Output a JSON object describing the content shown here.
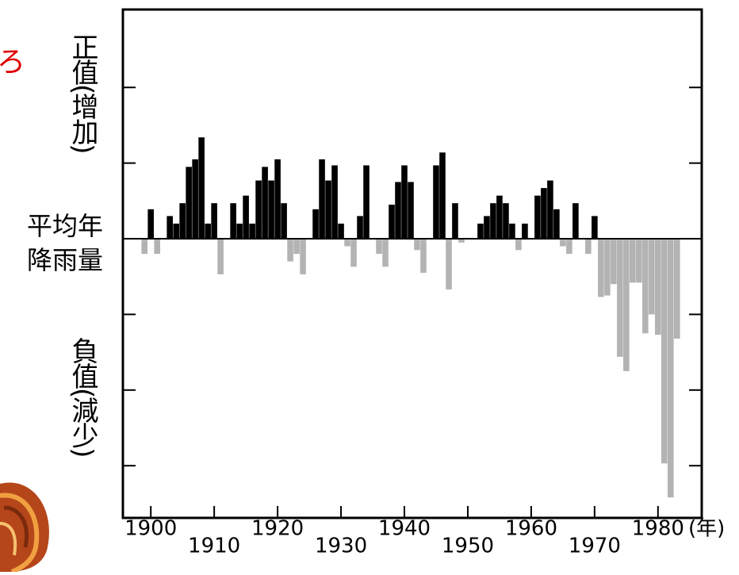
{
  "chart_data": {
    "type": "bar",
    "corner_text": "ろ",
    "y_label_top": "正值(增加)",
    "y_label_mid_1": "平均年",
    "y_label_mid_2": "降雨量",
    "y_label_bottom": "負值(減少)",
    "x_unit": "(年)",
    "positive_color": "#000000",
    "negative_color": "#b3b3b3",
    "x": [
      1899,
      1900,
      1901,
      1902,
      1903,
      1904,
      1905,
      1906,
      1907,
      1908,
      1909,
      1910,
      1911,
      1912,
      1913,
      1914,
      1915,
      1916,
      1917,
      1918,
      1919,
      1920,
      1921,
      1922,
      1923,
      1924,
      1925,
      1926,
      1927,
      1928,
      1929,
      1930,
      1931,
      1932,
      1933,
      1934,
      1935,
      1936,
      1937,
      1938,
      1939,
      1940,
      1941,
      1942,
      1943,
      1944,
      1945,
      1946,
      1947,
      1948,
      1949,
      1950,
      1951,
      1952,
      1953,
      1954,
      1955,
      1956,
      1957,
      1958,
      1959,
      1960,
      1961,
      1962,
      1963,
      1964,
      1965,
      1966,
      1967,
      1968,
      1969,
      1970,
      1971,
      1972,
      1973,
      1974,
      1975,
      1976,
      1977,
      1978,
      1979,
      1980,
      1981,
      1982,
      1983
    ],
    "values": [
      -0.2,
      0.39,
      -0.2,
      0,
      0.3,
      0.2,
      0.47,
      0.95,
      1.05,
      1.34,
      0.2,
      0.47,
      -0.47,
      0,
      0.47,
      0.2,
      0.57,
      0.2,
      0.77,
      0.95,
      0.77,
      1.05,
      0.47,
      -0.3,
      -0.2,
      -0.47,
      0,
      0.39,
      1.05,
      0.77,
      0.97,
      0.2,
      -0.1,
      -0.37,
      0.3,
      0.97,
      0,
      -0.2,
      -0.37,
      0.45,
      0.75,
      0.97,
      0.75,
      -0.15,
      -0.45,
      0,
      0.97,
      1.14,
      -0.67,
      0.47,
      -0.05,
      0,
      0,
      0.2,
      0.3,
      0.47,
      0.57,
      0.47,
      0.2,
      -0.15,
      0.2,
      0,
      0.57,
      0.67,
      0.77,
      0.39,
      -0.1,
      -0.2,
      0.47,
      0,
      -0.2,
      0.3,
      -0.77,
      -0.75,
      -0.6,
      -1.56,
      -1.75,
      -0.58,
      -0.58,
      -1.25,
      -1.0,
      -1.27,
      -2.97,
      -3.42,
      -1.32
    ],
    "xlim": [
      1895.6,
      1986.9
    ],
    "xticks": [
      1900,
      1910,
      1920,
      1930,
      1940,
      1950,
      1960,
      1970,
      1980
    ],
    "ylim": [
      -3.69,
      3.03
    ],
    "yticks": [
      -3,
      -2,
      -1,
      0,
      1,
      2
    ]
  }
}
